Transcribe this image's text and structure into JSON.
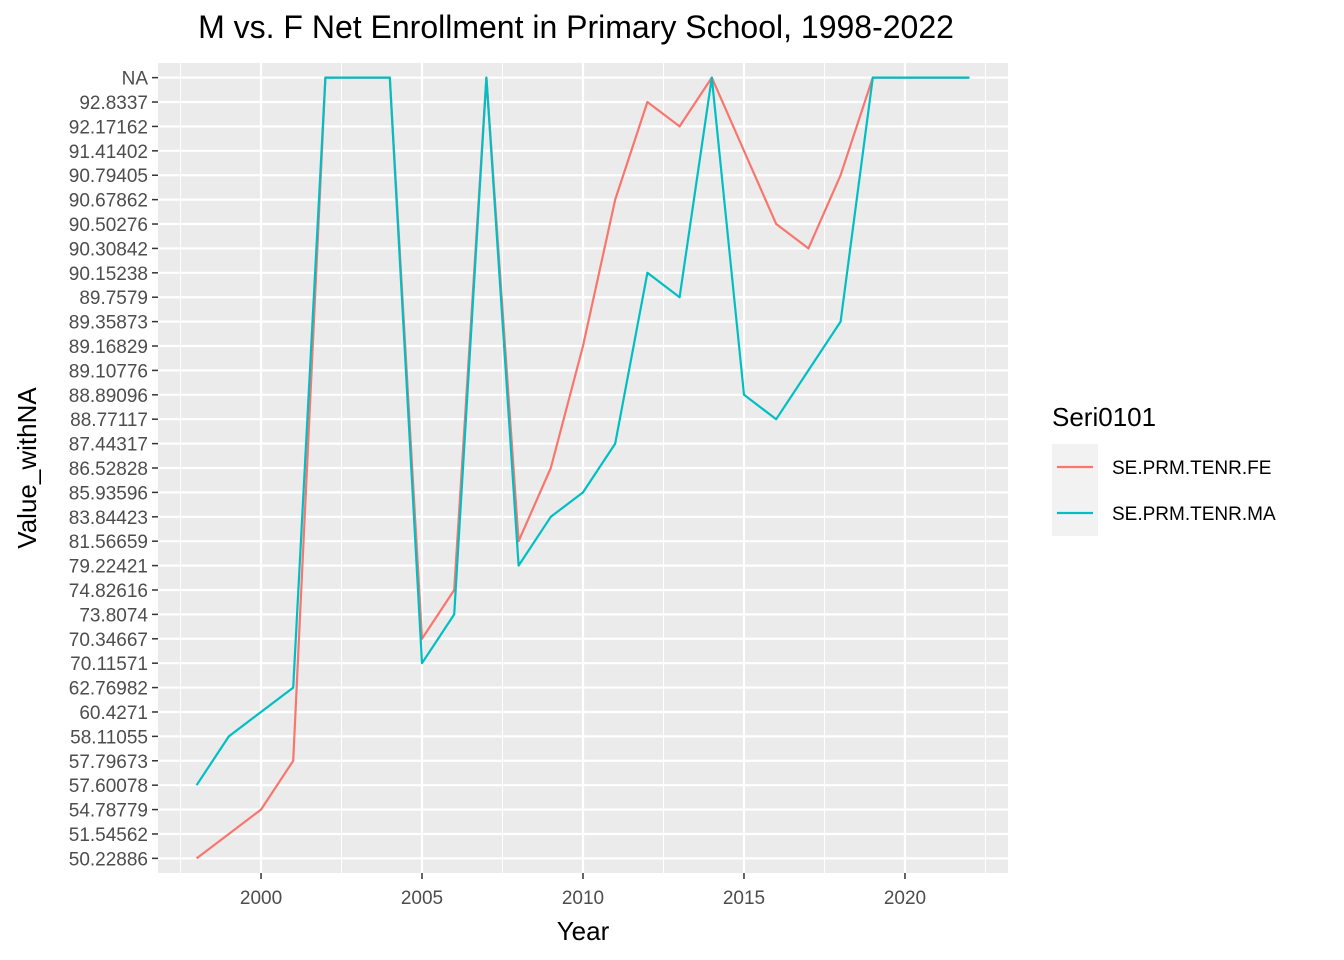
{
  "chart_data": {
    "type": "line",
    "title": "M vs. F Net Enrollment in Primary School, 1998-2022",
    "xlabel": "Year",
    "ylabel": "Value_withNA",
    "xlim": [
      1996.8,
      2023.2
    ],
    "x_ticks": [
      2000,
      2005,
      2010,
      2015,
      2020
    ],
    "y_axis_kind": "discrete",
    "y_levels": [
      "50.22886",
      "51.54562",
      "54.78779",
      "57.60078",
      "57.79673",
      "58.11055",
      "60.4271",
      "62.76982",
      "70.11571",
      "70.34667",
      "73.8074",
      "74.82616",
      "79.22421",
      "81.56659",
      "83.84423",
      "85.93596",
      "86.52828",
      "87.44317",
      "88.77117",
      "88.89096",
      "89.10776",
      "89.16829",
      "89.35873",
      "89.7579",
      "90.15238",
      "90.30842",
      "90.50276",
      "90.67862",
      "90.79405",
      "91.41402",
      "92.17162",
      "92.8337",
      "NA"
    ],
    "grid": true,
    "legend": {
      "title": "Seri0101",
      "position": "right"
    },
    "x": [
      1998,
      1999,
      2000,
      2001,
      2002,
      2003,
      2004,
      2005,
      2006,
      2007,
      2008,
      2009,
      2010,
      2011,
      2012,
      2013,
      2014,
      2015,
      2016,
      2017,
      2018,
      2019,
      2020,
      2021,
      2022
    ],
    "series": [
      {
        "name": "SE.PRM.TENR.FE",
        "color": "#F8766D",
        "values": [
          "50.22886",
          "51.54562",
          "54.78779",
          "57.79673",
          "NA",
          "NA",
          "NA",
          "70.34667",
          "74.82616",
          "NA",
          "81.56659",
          "86.52828",
          "89.16829",
          "90.67862",
          "92.8337",
          "92.17162",
          "NA",
          "91.41402",
          "90.50276",
          "90.30842",
          "90.79405",
          "NA",
          "NA",
          "NA",
          "NA"
        ]
      },
      {
        "name": "SE.PRM.TENR.MA",
        "color": "#00BFC4",
        "values": [
          "57.60078",
          "58.11055",
          "60.4271",
          "62.76982",
          "NA",
          "NA",
          "NA",
          "70.11571",
          "73.8074",
          "NA",
          "79.22421",
          "83.84423",
          "85.93596",
          "87.44317",
          "90.15238",
          "89.7579",
          "NA",
          "88.89096",
          "88.77117",
          "89.10776",
          "89.35873",
          "NA",
          "NA",
          "NA",
          "NA"
        ]
      }
    ]
  }
}
